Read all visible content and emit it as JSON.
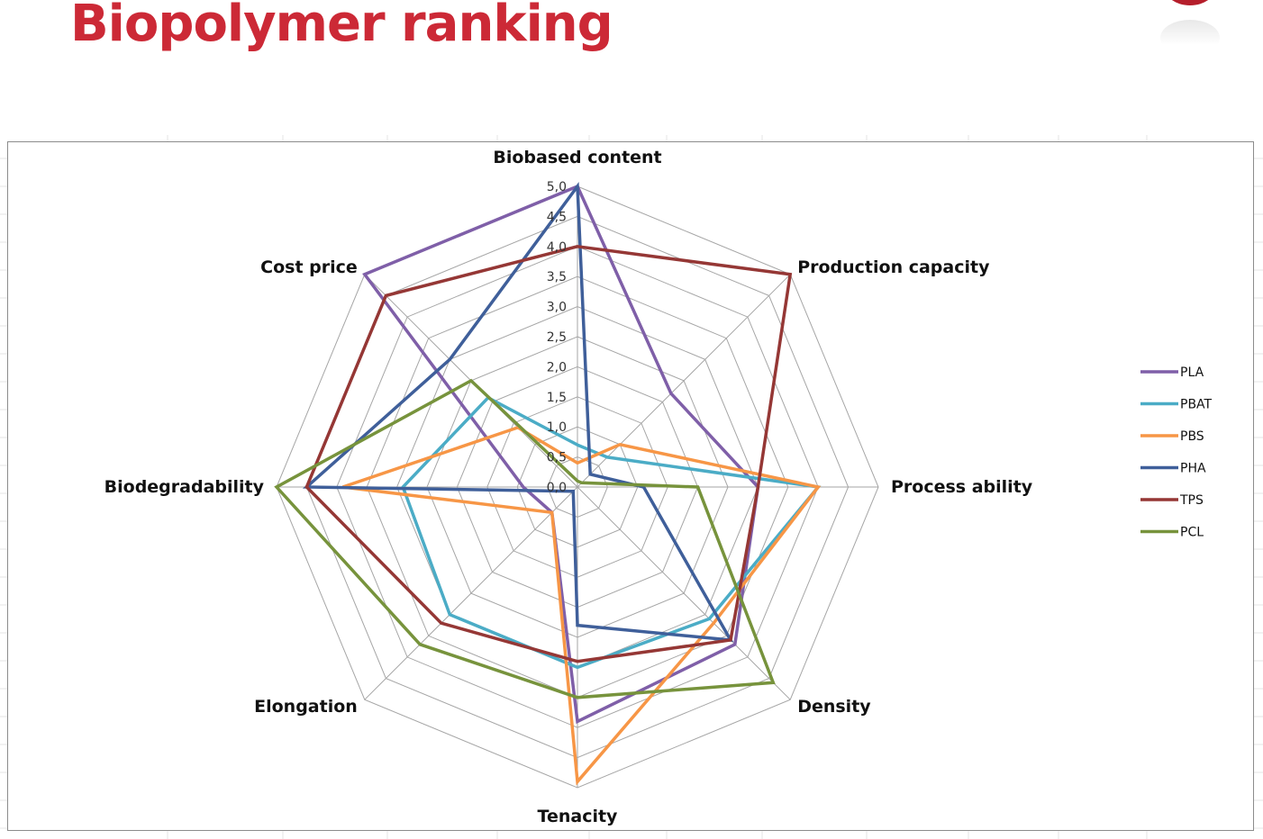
{
  "slide": {
    "title": "Biopolymer ranking"
  },
  "chart_data": {
    "type": "radar",
    "axes": [
      "Biobased content",
      "Production capacity",
      "Process ability",
      "Density",
      "Tenacity",
      "Elongation",
      "Biodegradability",
      "Cost price"
    ],
    "rlim": [
      0,
      5
    ],
    "ticks": [
      "0,0",
      "0,5",
      "1,0",
      "1,5",
      "2,0",
      "2,5",
      "3,0",
      "3,5",
      "4,0",
      "4,5",
      "5,0"
    ],
    "legend_position": "right",
    "series": [
      {
        "name": "PLA",
        "color": "#7f5fa8",
        "values": [
          5.0,
          2.2,
          3.0,
          3.7,
          3.9,
          0.6,
          0.9,
          5.0
        ]
      },
      {
        "name": "PBAT",
        "color": "#4bacc6",
        "values": [
          0.7,
          0.7,
          4.0,
          3.1,
          3.0,
          3.0,
          2.9,
          2.1
        ]
      },
      {
        "name": "PBS",
        "color": "#f79646",
        "values": [
          0.4,
          1.0,
          4.0,
          3.2,
          4.9,
          0.6,
          3.9,
          1.4
        ]
      },
      {
        "name": "PHA",
        "color": "#3f5f9a",
        "values": [
          5.0,
          0.3,
          1.1,
          3.6,
          2.3,
          0.1,
          4.5,
          3.0
        ]
      },
      {
        "name": "TPS",
        "color": "#953735",
        "values": [
          4.0,
          5.0,
          3.0,
          3.6,
          2.9,
          3.2,
          4.5,
          4.5
        ]
      },
      {
        "name": "PCL",
        "color": "#77933c",
        "values": [
          0.1,
          0.1,
          2.0,
          4.6,
          3.5,
          3.7,
          5.0,
          2.5
        ]
      }
    ]
  },
  "style": {
    "grid_color": "#a6a6a6",
    "title_color": "#cc2936"
  }
}
